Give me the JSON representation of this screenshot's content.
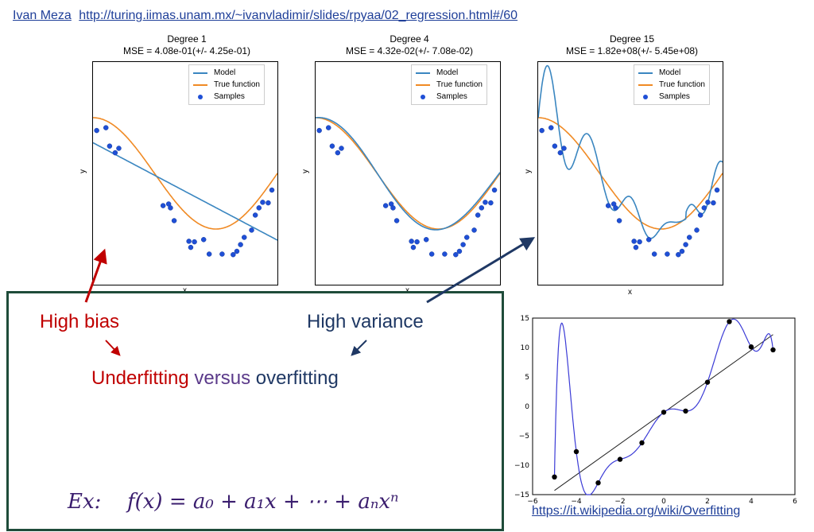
{
  "header": {
    "author": "Ivan Meza",
    "url": "http://turing.iimas.unam.mx/~ivanvladimir/slides/rpyaa/02_regression.html#/60"
  },
  "colors": {
    "model": "#3a86c0",
    "true_function": "#f08a24",
    "samples": "#1f4fd6",
    "bias_red": "#c00000",
    "variance_blue": "#1f3864",
    "box_green": "#1f4c3a"
  },
  "legend": {
    "model": "Model",
    "true_function": "True function",
    "samples": "Samples"
  },
  "annotations": {
    "high_bias": "High bias",
    "high_variance": "High variance",
    "underfitting": "Underfitting",
    "versus": "versus",
    "overfitting": "overfitting",
    "example_label": "Ex:",
    "example_formula": "f(x) = a₀ + a₁x + ⋯ + aₙxⁿ",
    "source_link": "https://it.wikipedia.org/wiki/Overfitting"
  },
  "chart_data": [
    {
      "type": "line",
      "title": "Degree 1",
      "subtitle": "MSE = 4.08e-01(+/- 4.25e-01)",
      "xlabel": "x",
      "ylabel": "y",
      "xlim": [
        0,
        1
      ],
      "ylim": [
        -2,
        2
      ],
      "legend": "top-right",
      "series": [
        {
          "name": "Model",
          "type": "line",
          "x": [
            0,
            1
          ],
          "y": [
            0.55,
            -1.2
          ]
        },
        {
          "name": "True function",
          "type": "line"
        },
        {
          "name": "Samples",
          "type": "scatter"
        }
      ]
    },
    {
      "type": "line",
      "title": "Degree 4",
      "subtitle": "MSE = 4.32e-02(+/- 7.08e-02)",
      "xlabel": "x",
      "ylabel": "y",
      "xlim": [
        0,
        1
      ],
      "ylim": [
        -2,
        2
      ],
      "legend": "top-right",
      "series": [
        {
          "name": "Model",
          "type": "line"
        },
        {
          "name": "True function",
          "type": "line"
        },
        {
          "name": "Samples",
          "type": "scatter"
        }
      ]
    },
    {
      "type": "line",
      "title": "Degree 15",
      "subtitle": "MSE = 1.82e+08(+/- 5.45e+08)",
      "xlabel": "x",
      "ylabel": "y",
      "xlim": [
        0,
        1
      ],
      "ylim": [
        -2,
        2
      ],
      "legend": "top-right",
      "series": [
        {
          "name": "Model",
          "type": "line"
        },
        {
          "name": "True function",
          "type": "line"
        },
        {
          "name": "Samples",
          "type": "scatter"
        }
      ]
    },
    {
      "type": "scatter",
      "xlim": [
        -6,
        6
      ],
      "ylim": [
        -15,
        15
      ],
      "xticks": [
        "−6",
        "−4",
        "−2",
        "0",
        "2",
        "4",
        "6"
      ],
      "yticks": [
        "−15",
        "−10",
        "−5",
        "0",
        "5",
        "10",
        "15"
      ],
      "points": [
        [
          -5,
          -12
        ],
        [
          -4,
          -7.7
        ],
        [
          -3,
          -13
        ],
        [
          -2,
          -9
        ],
        [
          -1,
          -6.2
        ],
        [
          0,
          -1
        ],
        [
          1,
          -0.8
        ],
        [
          2,
          4.1
        ],
        [
          3,
          14.4
        ],
        [
          4,
          10.1
        ],
        [
          5,
          9.6
        ]
      ],
      "fit_line": [
        [
          -5,
          -14.3
        ],
        [
          5,
          12.2
        ]
      ]
    }
  ],
  "samples": [
    [
      0.02,
      0.77
    ],
    [
      0.07,
      0.82
    ],
    [
      0.09,
      0.49
    ],
    [
      0.12,
      0.37
    ],
    [
      0.14,
      0.45
    ],
    [
      0.38,
      -0.58
    ],
    [
      0.41,
      -0.55
    ],
    [
      0.42,
      -0.62
    ],
    [
      0.44,
      -0.85
    ],
    [
      0.52,
      -1.22
    ],
    [
      0.53,
      -1.33
    ],
    [
      0.55,
      -1.23
    ],
    [
      0.6,
      -1.19
    ],
    [
      0.63,
      -1.45
    ],
    [
      0.7,
      -1.45
    ],
    [
      0.76,
      -1.46
    ],
    [
      0.78,
      -1.4
    ],
    [
      0.8,
      -1.28
    ],
    [
      0.82,
      -1.15
    ],
    [
      0.86,
      -1.02
    ],
    [
      0.88,
      -0.75
    ],
    [
      0.9,
      -0.62
    ],
    [
      0.92,
      -0.52
    ],
    [
      0.95,
      -0.53
    ],
    [
      0.97,
      -0.3
    ]
  ]
}
